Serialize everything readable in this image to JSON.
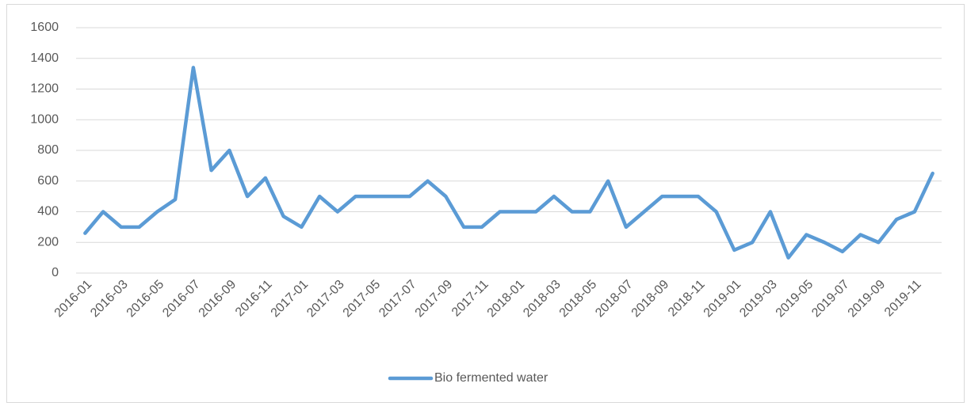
{
  "chart_data": {
    "type": "line",
    "categories": [
      "2016-01",
      null,
      "2016-03",
      null,
      "2016-05",
      null,
      "2016-07",
      null,
      "2016-09",
      null,
      "2016-11",
      null,
      "2017-01",
      null,
      "2017-03",
      null,
      "2017-05",
      null,
      "2017-07",
      null,
      "2017-09",
      null,
      "2017-11",
      null,
      "2018-01",
      null,
      "2018-03",
      null,
      "2018-05",
      null,
      "2018-07",
      null,
      "2018-09",
      null,
      "2018-11",
      null,
      "2019-01",
      null,
      "2019-03",
      null,
      "2019-05",
      null,
      "2019-07",
      null,
      "2019-09",
      null,
      "2019-11",
      null
    ],
    "series": [
      {
        "name": "Bio fermented water",
        "color": "#5b9bd5",
        "values": [
          260,
          400,
          300,
          300,
          400,
          480,
          1340,
          670,
          800,
          500,
          620,
          370,
          300,
          500,
          400,
          500,
          500,
          500,
          500,
          600,
          500,
          300,
          300,
          400,
          400,
          400,
          500,
          400,
          400,
          600,
          300,
          400,
          500,
          500,
          500,
          400,
          150,
          200,
          400,
          100,
          250,
          200,
          140,
          250,
          200,
          350,
          400,
          650
        ]
      }
    ],
    "ylim": [
      0,
      1600
    ],
    "yticks": [
      0,
      200,
      400,
      600,
      800,
      1000,
      1200,
      1400,
      1600
    ],
    "grid": true,
    "legend": "bottom"
  }
}
